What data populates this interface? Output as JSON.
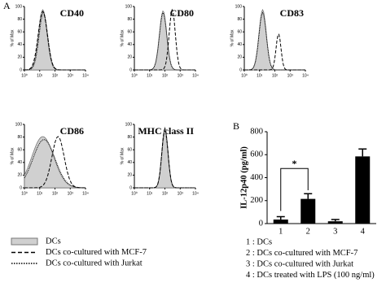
{
  "panel_labels": [
    "A",
    "B"
  ],
  "histograms": [
    {
      "title": "CD40"
    },
    {
      "title": "CD80"
    },
    {
      "title": "CD83"
    },
    {
      "title": "CD86"
    },
    {
      "title": "MHC class II"
    }
  ],
  "histogram_axes": {
    "y_label": "% of Max",
    "yticks": [
      0,
      20,
      40,
      60,
      80,
      100
    ],
    "xticks": [
      {
        "value": 0,
        "label": "10⁰"
      },
      {
        "value": 1,
        "label": "10¹"
      },
      {
        "value": 2,
        "label": "10²"
      },
      {
        "value": 3,
        "label": "10³"
      },
      {
        "value": 4,
        "label": "10⁴"
      }
    ]
  },
  "legend_a": [
    "DCs",
    "DCs co-cultured with MCF-7",
    "DCs co-cultured with Jurkat"
  ],
  "chart_data": {
    "type": "bar",
    "y_label": "IL-12p40 (pg/ml)",
    "categories": [
      "1",
      "2",
      "3",
      "4"
    ],
    "values": [
      35,
      215,
      20,
      585
    ],
    "errors": [
      25,
      45,
      15,
      65
    ],
    "color": "#000000",
    "ylim": [
      0,
      800
    ],
    "yticks": [
      0,
      200,
      400,
      600,
      800
    ],
    "annotation": "*"
  },
  "legend_b": [
    "1 : DCs",
    "2 : DCs co-cultured with MCF-7",
    "3 : DCs co-cultured with Jurkat",
    "4 : DCs treated with LPS (100 ng/ml)"
  ]
}
